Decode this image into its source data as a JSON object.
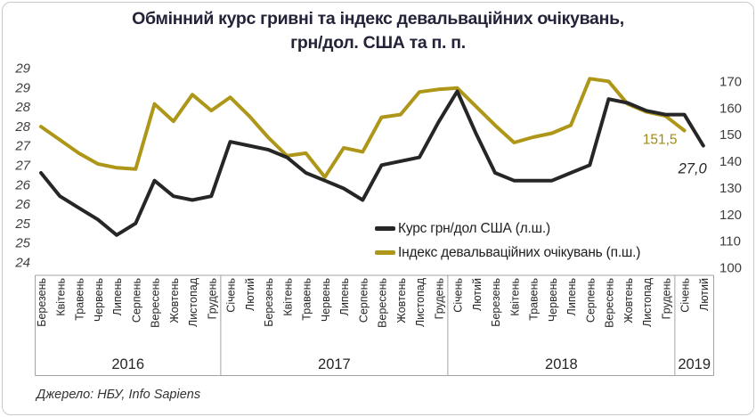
{
  "title": {
    "line1": "Обмінний курс гривні та індекс девальваційних очікувань,",
    "line2": "грн/дол. США та п. п."
  },
  "source": "Джерело: НБУ, Info Sapiens",
  "legend": {
    "items": [
      {
        "label": "Курс грн/дол США (л.ш.)",
        "color": "#262626"
      },
      {
        "label": "Індекс девальваційних очікувань (п.ш.)",
        "color": "#ae9718"
      }
    ]
  },
  "chart_data": {
    "type": "line",
    "title": "Обмінний курс гривні та індекс девальваційних очікувань, грн/дол. США та п. п.",
    "grid": false,
    "legend_position": "center-right",
    "x_axis": {
      "groups": [
        {
          "year": "2016",
          "months": [
            "Березень",
            "Квітень",
            "Травень",
            "Червень",
            "Липень",
            "Серпень",
            "Вересень",
            "Жовтень",
            "Листопад",
            "Грудень"
          ]
        },
        {
          "year": "2017",
          "months": [
            "Січень",
            "Лютий",
            "Березень",
            "Квітень",
            "Травень",
            "Червень",
            "Липень",
            "Серпень",
            "Вересень",
            "Жовтень",
            "Листопад",
            "Грудень"
          ]
        },
        {
          "year": "2018",
          "months": [
            "Січень",
            "Лютий",
            "Березень",
            "Квітень",
            "Травень",
            "Червень",
            "Липень",
            "Серпень",
            "Вересень",
            "Жовтень",
            "Листопад",
            "Грудень"
          ]
        },
        {
          "year": "2019",
          "months": [
            "Січень",
            "Лютий"
          ]
        }
      ]
    },
    "left_axis": {
      "min": 24,
      "max": 29,
      "tick_step": 0.5,
      "labels": [
        "29",
        "29",
        "28",
        "28",
        "27",
        "27",
        "26",
        "26",
        "25",
        "25",
        "24"
      ]
    },
    "right_axis": {
      "min": 100,
      "max": 170,
      "tick_step": 10,
      "labels": [
        "170",
        "160",
        "150",
        "140",
        "130",
        "120",
        "110",
        "100"
      ]
    },
    "series": [
      {
        "name": "Курс грн/дол США (л.ш.)",
        "axis": "left",
        "color": "#262626",
        "values": [
          26.3,
          25.7,
          25.4,
          25.1,
          24.7,
          25.0,
          26.1,
          25.7,
          25.6,
          25.7,
          27.1,
          27.0,
          26.9,
          26.7,
          26.3,
          26.1,
          25.9,
          25.6,
          26.5,
          26.6,
          26.7,
          27.6,
          28.4,
          27.3,
          26.3,
          26.1,
          26.1,
          26.1,
          26.3,
          26.5,
          28.2,
          28.1,
          27.9,
          27.8,
          27.8,
          27.0
        ]
      },
      {
        "name": "Індекс девальваційних очікувань (п.ш.)",
        "axis": "right",
        "color": "#ae9718",
        "values": [
          153,
          148,
          143,
          139,
          137.5,
          137,
          161.5,
          155,
          165,
          159,
          164,
          157,
          149,
          142,
          143,
          134,
          145,
          143.5,
          156.5,
          157.5,
          166,
          167,
          167.5,
          160.5,
          153.5,
          147,
          149,
          150.5,
          153.5,
          171,
          170,
          161.5,
          158.5,
          157,
          151.5,
          null
        ]
      }
    ],
    "annotations": [
      {
        "text": "151,5",
        "series": 1,
        "point": 34,
        "color": "#a18a10"
      },
      {
        "text": "27,0",
        "series": 0,
        "point": 35,
        "color": "#262626"
      }
    ]
  }
}
